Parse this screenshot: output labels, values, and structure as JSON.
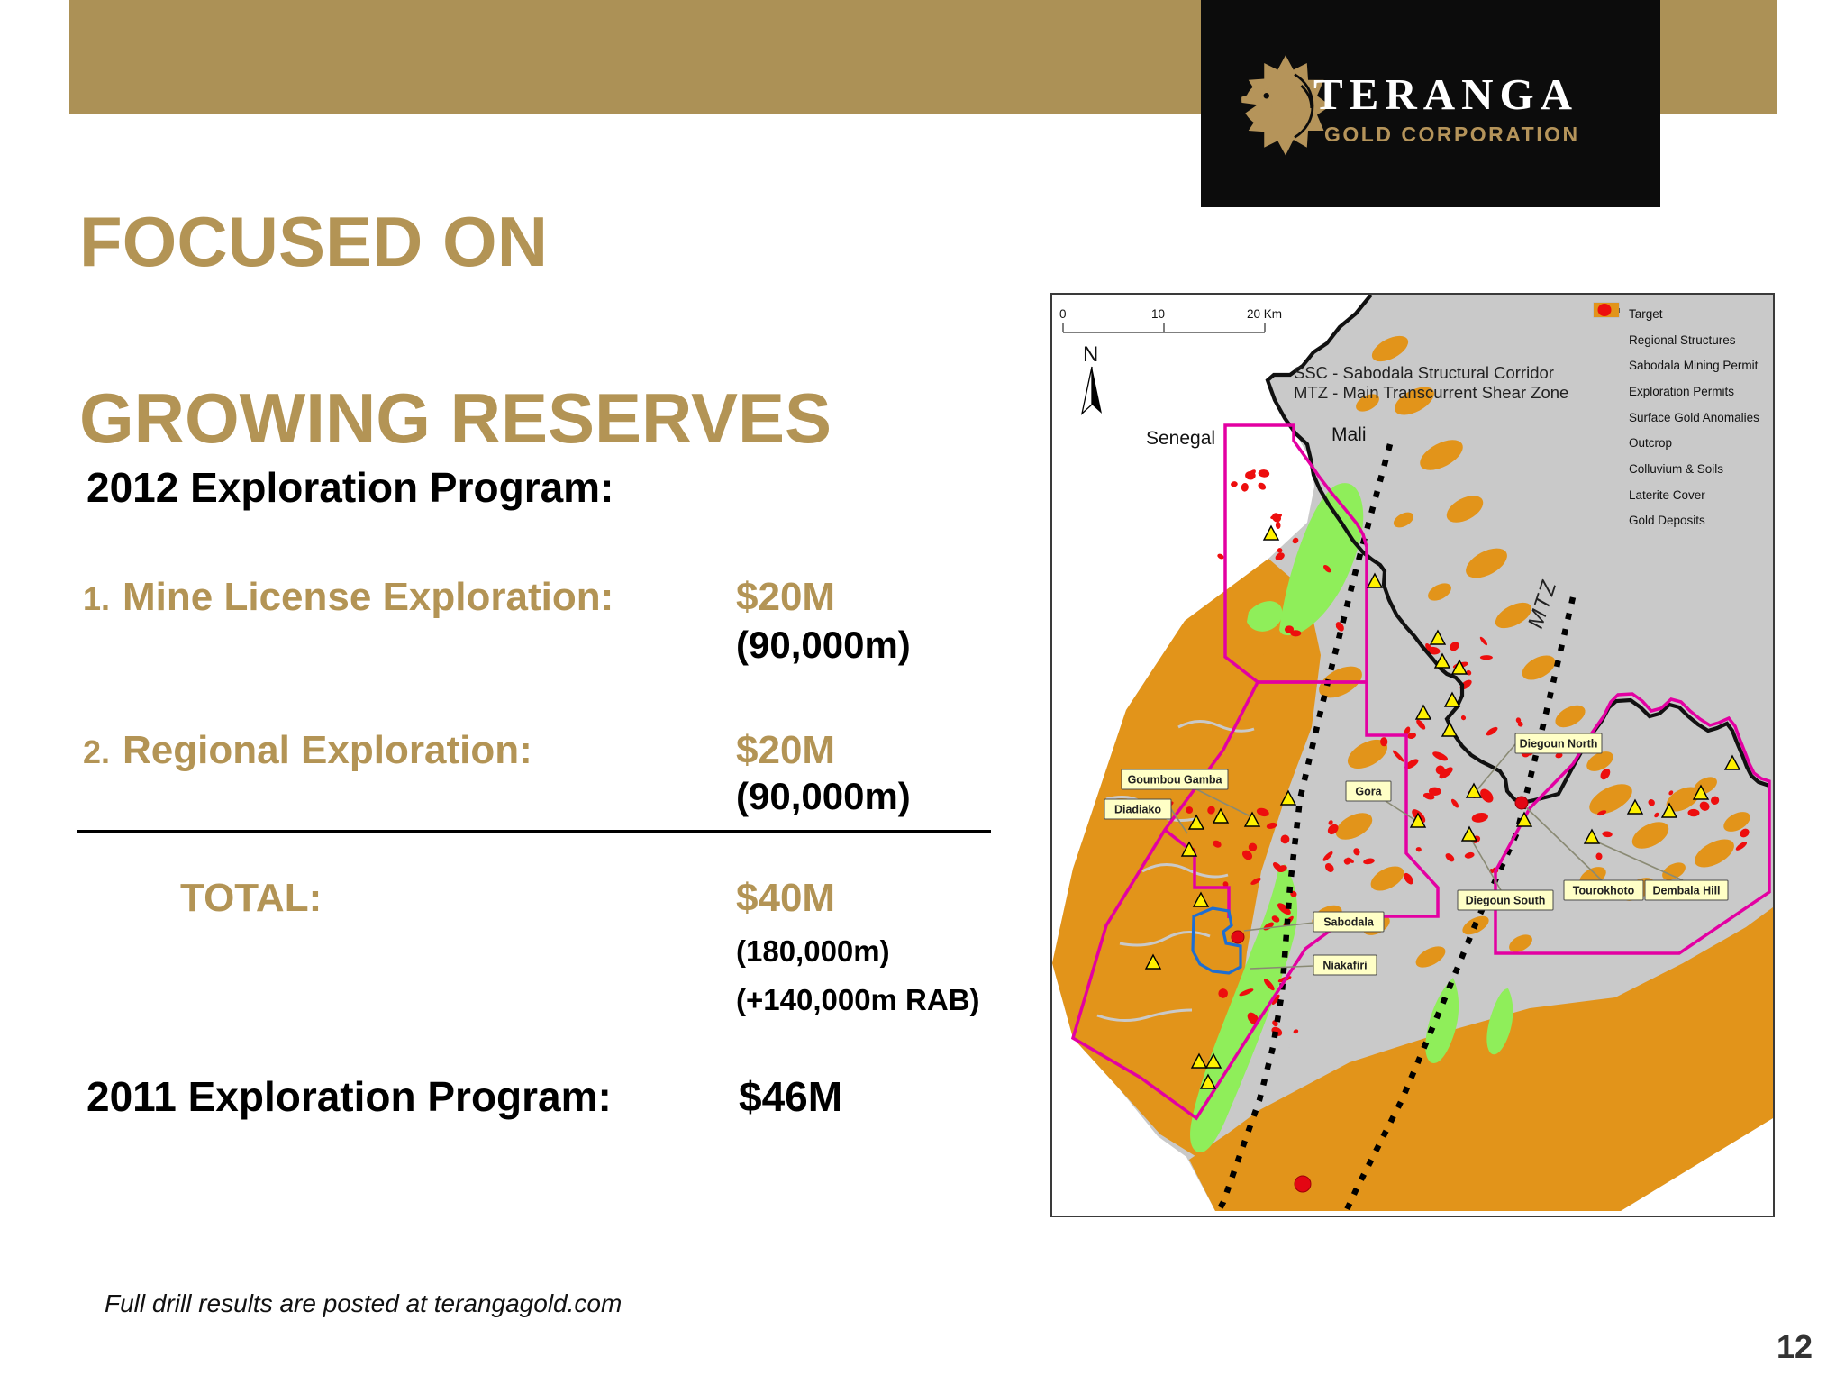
{
  "logo": {
    "name": "TERANGA",
    "subtitle": "GOLD CORPORATION"
  },
  "title": {
    "line1": "FOCUSED ON",
    "line2": "GROWING RESERVES"
  },
  "program": {
    "heading_2012": "2012 Exploration Program:",
    "items": [
      {
        "num": "1.",
        "label": "Mine License Exploration:",
        "value": "$20M",
        "sub": "(90,000m)"
      },
      {
        "num": "2.",
        "label": "Regional Exploration:",
        "value": "$20M",
        "sub": "(90,000m)"
      }
    ],
    "total_label": "TOTAL:",
    "total_value": "$40M",
    "total_sub1": "(180,000m)",
    "total_sub2": "(+140,000m RAB)",
    "heading_2011": "2011 Exploration Program:",
    "value_2011": "$46M"
  },
  "footnote": "Full drill results are posted at terangagold.com",
  "page_number": "12",
  "map": {
    "scale": {
      "t0": "0",
      "t10": "10",
      "t20": "20 Km"
    },
    "north_label": "N",
    "definitions": {
      "ssc": "SSC - Sabodala Structural Corridor",
      "mtz": "MTZ - Main Transcurrent Shear Zone"
    },
    "countries": {
      "left": "Senegal",
      "right": "Mali"
    },
    "mtz_axis_label": "MTZ",
    "legend": [
      {
        "label": "Target",
        "type": "triangle"
      },
      {
        "label": "Regional Structures",
        "type": "dots"
      },
      {
        "label": "Sabodala Mining Permit",
        "type": "rect-blue"
      },
      {
        "label": "Exploration Permits",
        "type": "rect-magenta"
      },
      {
        "label": "Surface Gold Anomalies",
        "type": "fill-red"
      },
      {
        "label": "Outcrop",
        "type": "fill-green"
      },
      {
        "label": "Colluvium & Soils",
        "type": "fill-gray"
      },
      {
        "label": "Laterite Cover",
        "type": "fill-orange"
      },
      {
        "label": "Gold Deposits",
        "type": "dot-red"
      }
    ],
    "callouts": [
      "Diegoun North",
      "Goumbou Gamba",
      "Gora",
      "Diadiako",
      "Tourokhoto",
      "Dembala Hill",
      "Diegoun South",
      "Sabodala",
      "Niakafiri"
    ]
  },
  "colors": {
    "brand_gold_bar": "#AC9156",
    "gold_text": "#B39455",
    "exploration_permit_magenta": "#E300A2",
    "mining_permit_blue": "#1E6ED2",
    "laterite_orange": "#E2941A",
    "outcrop_green": "#8FEE5A",
    "colluvium_gray": "#C9C9C9",
    "anomaly_red": "#ED0E0E",
    "target_yellow": "#FFF100"
  }
}
